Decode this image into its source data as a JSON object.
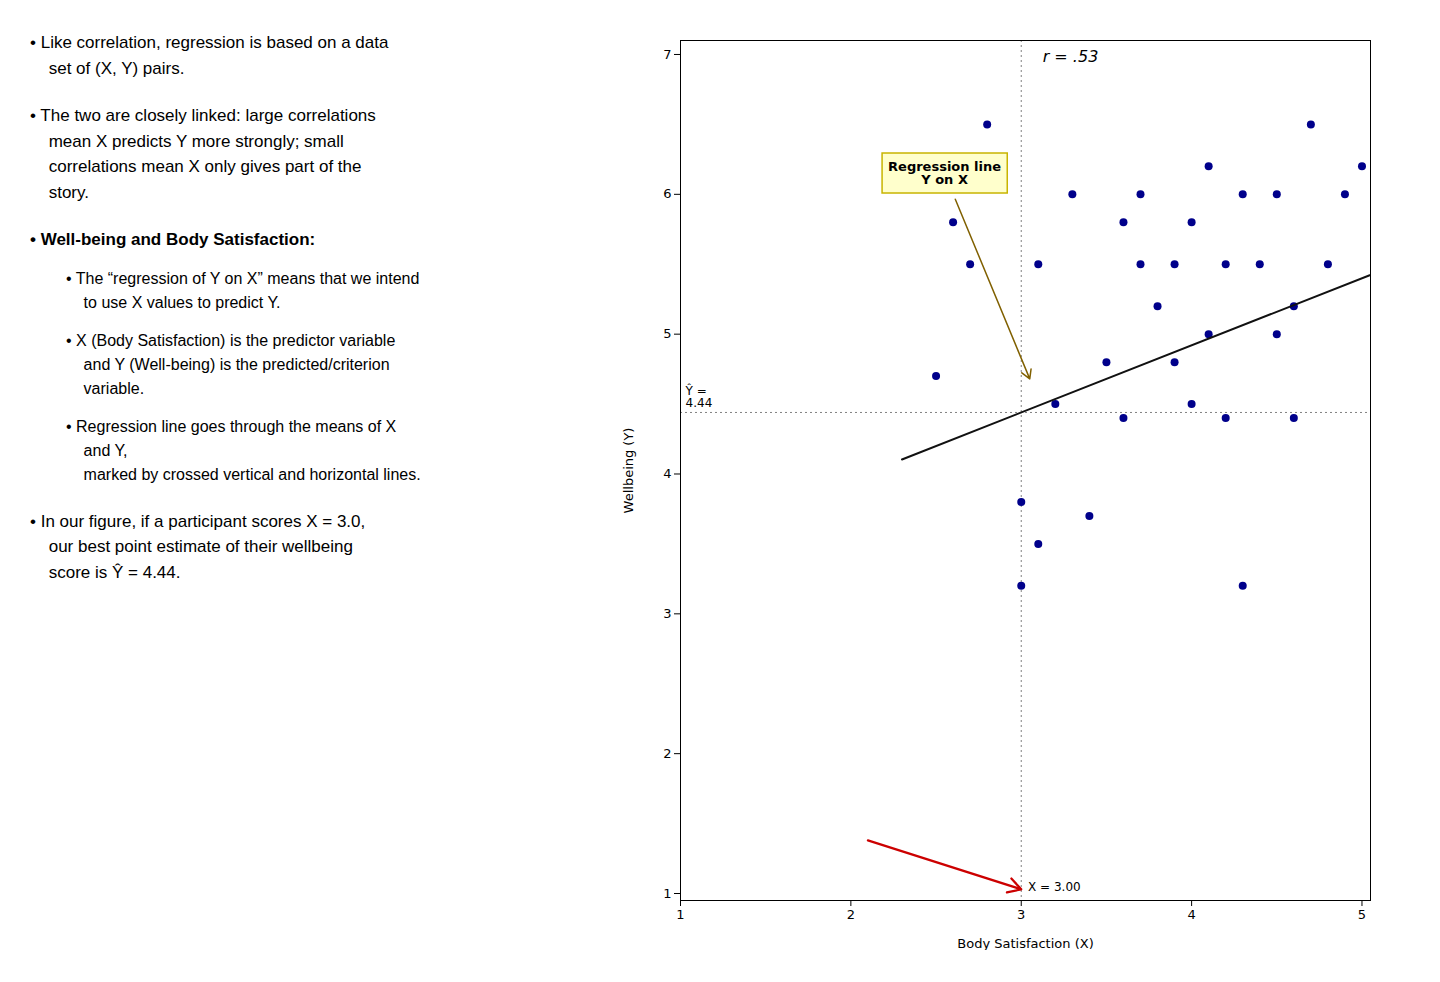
{
  "chart_data": {
    "type": "scatter",
    "xlabel": "Body Satisfaction (X)",
    "ylabel": "Wellbeing (Y)",
    "xlim": [
      1,
      5.05
    ],
    "ylim": [
      0.95,
      7.1
    ],
    "xticks": [
      1,
      2,
      3,
      4,
      5
    ],
    "yticks": [
      1,
      2,
      3,
      4,
      5,
      6,
      7
    ],
    "grid": false,
    "series": [
      {
        "type": "scatter",
        "color": "#00008B",
        "x": [
          2.5,
          2.6,
          2.7,
          2.8,
          3.0,
          3.0,
          3.1,
          3.1,
          3.2,
          3.3,
          3.4,
          3.5,
          3.6,
          3.6,
          3.7,
          3.7,
          3.8,
          3.9,
          3.9,
          4.0,
          4.0,
          4.1,
          4.1,
          4.2,
          4.2,
          4.3,
          4.3,
          4.4,
          4.5,
          4.5,
          4.6,
          4.6,
          4.7,
          4.8,
          4.9,
          5.0
        ],
        "values": [
          4.7,
          5.8,
          5.5,
          6.5,
          3.2,
          3.8,
          5.5,
          3.5,
          4.5,
          6.0,
          3.7,
          4.8,
          5.8,
          4.4,
          5.5,
          6.0,
          5.2,
          4.8,
          5.5,
          5.8,
          4.5,
          6.2,
          5.0,
          5.5,
          4.4,
          6.0,
          3.2,
          5.5,
          5.0,
          6.0,
          5.2,
          4.4,
          6.5,
          5.5,
          6.0,
          6.2
        ]
      },
      {
        "type": "line",
        "color": "#111111",
        "x": [
          2.3,
          5.1
        ],
        "values": [
          4.104,
          5.448
        ]
      }
    ],
    "mean_lines": {
      "x": 3.0,
      "y": 4.44
    },
    "annotations": [
      {
        "text": "r = .53"
      },
      {
        "text": "Regression line\nY on X",
        "x": 2.55,
        "y": 6.15,
        "arrow_to": [
          3.05,
          4.68
        ],
        "color": "#FFFFCC"
      },
      {
        "text": "X = 3.00",
        "x": 3.04,
        "y": 1.02
      },
      {
        "text": "Ŷ =\n4.44",
        "x": 1.03,
        "y": 4.48
      },
      {
        "x": 2.1,
        "y": 1.38,
        "arrow_to": [
          3.0,
          1.03
        ],
        "color": "#CC0000"
      }
    ],
    "text_panel": [
      {
        "lines": [
          "• Like correlation, regression is based on a data",
          "set of (X, Y) pairs."
        ]
      },
      {
        "lines": [
          "• The two are closely linked: large correlations",
          "mean X predicts Y more strongly; small",
          "correlations mean X only gives part of the",
          "story."
        ]
      },
      {
        "lines": [
          "• Well-being and Body Satisfaction:"
        ],
        "items": [
          {
            "lines": [
              "• The “regression of Y on X” means that we intend",
              "to use X values to predict Y."
            ]
          },
          {
            "lines": [
              "• X (Body Satisfaction) is the predictor variable",
              "and Y (Well-being) is the predicted/criterion",
              "variable."
            ]
          },
          {
            "lines": [
              "• Regression line goes through the means of X",
              "and Y,",
              "marked by crossed vertical and horizontal lines."
            ]
          }
        ]
      },
      {
        "lines": [
          "• In our figure, if a participant scores X = 3.0,",
          "our best point estimate of their wellbeing",
          "score is Ŷ = 4.44."
        ]
      }
    ]
  }
}
